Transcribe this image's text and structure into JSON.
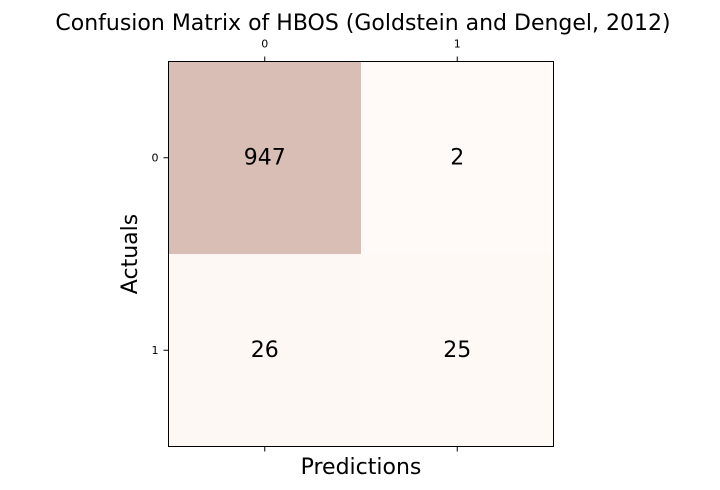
{
  "chart_data": {
    "type": "heatmap",
    "title": "Confusion Matrix of HBOS (Goldstein and Dengel, 2012)",
    "xlabel": "Predictions",
    "ylabel": "Actuals",
    "x_ticks": [
      "0",
      "1"
    ],
    "y_ticks": [
      "0",
      "1"
    ],
    "matrix": [
      [
        947,
        2
      ],
      [
        26,
        25
      ]
    ],
    "colors": {
      "low": "#fffaf7",
      "high": "#d9beb5",
      "axis": "#000000"
    },
    "x_tick_position": "top"
  }
}
